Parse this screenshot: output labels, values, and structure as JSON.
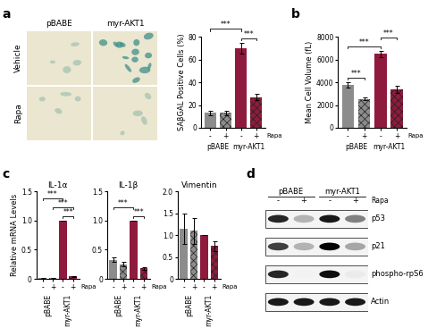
{
  "panel_labels": [
    "a",
    "b",
    "c",
    "d"
  ],
  "images": {
    "columns": [
      "pBABE",
      "myr-AKT1"
    ],
    "rows": [
      "Vehicle",
      "Rapa"
    ]
  },
  "chart_data": [
    {
      "type": "bar",
      "ylabel": "SAβGAL Positive Cells (%)",
      "categories": [
        "-",
        "+",
        "-",
        "+"
      ],
      "groups": [
        {
          "label": "pBABE",
          "span": [
            0,
            1
          ]
        },
        {
          "label": "myr-AKT1",
          "span": [
            2,
            3
          ]
        }
      ],
      "group_label": "Rapa",
      "values": [
        13,
        13,
        70,
        27
      ],
      "errors": [
        2,
        2,
        5,
        3
      ],
      "colors": [
        "#8c8c8c",
        "#8c8c8c",
        "#8e1b3e",
        "#8e1b3e"
      ],
      "ylim": [
        0,
        80
      ],
      "yticks": [
        0,
        20,
        40,
        60,
        80
      ],
      "significance": [
        {
          "pair": [
            2,
            3
          ],
          "label": "***"
        },
        {
          "pair": [
            0,
            2
          ],
          "label": "***"
        }
      ]
    },
    {
      "type": "bar",
      "ylabel": "Mean Cell Volume (fL)",
      "categories": [
        "-",
        "+",
        "-",
        "+"
      ],
      "groups": [
        {
          "label": "pBABE",
          "span": [
            0,
            1
          ]
        },
        {
          "label": "myr-AKT1",
          "span": [
            2,
            3
          ]
        }
      ],
      "group_label": "Rapa",
      "values": [
        3750,
        2550,
        6500,
        3400
      ],
      "errors": [
        250,
        150,
        250,
        300
      ],
      "colors": [
        "#8c8c8c",
        "#8c8c8c",
        "#8e1b3e",
        "#8e1b3e"
      ],
      "ylim": [
        0,
        8000
      ],
      "yticks": [
        0,
        2000,
        4000,
        6000,
        8000
      ],
      "significance": [
        {
          "pair": [
            0,
            1
          ],
          "label": "***"
        },
        {
          "pair": [
            0,
            2
          ],
          "label": "***"
        },
        {
          "pair": [
            2,
            3
          ],
          "label": "***"
        }
      ]
    },
    {
      "type": "bar",
      "title": "IL-1α",
      "ylabel": "Relative mRNA Levels",
      "categories": [
        "-",
        "+",
        "-",
        "+"
      ],
      "groups": [
        {
          "label": "pBABE",
          "span": [
            0,
            1
          ]
        },
        {
          "label": "myr-AKT1",
          "span": [
            2,
            3
          ]
        }
      ],
      "group_label": "Rapa",
      "values": [
        0.01,
        0.01,
        1.0,
        0.04
      ],
      "errors": [
        0.005,
        0.005,
        0,
        0.01
      ],
      "colors": [
        "#8c8c8c",
        "#8c8c8c",
        "#8e1b3e",
        "#8e1b3e"
      ],
      "ylim": [
        0,
        1.5
      ],
      "yticks": [
        0,
        0.5,
        1.0,
        1.5
      ],
      "significance": [
        {
          "pair": [
            2,
            3
          ],
          "label": "***"
        },
        {
          "pair": [
            1,
            3
          ],
          "label": "***"
        },
        {
          "pair": [
            0,
            2
          ],
          "label": "***"
        }
      ]
    },
    {
      "type": "bar",
      "title": "IL-1β",
      "categories": [
        "-",
        "+",
        "-",
        "+"
      ],
      "groups": [
        {
          "label": "pBABE",
          "span": [
            0,
            1
          ]
        },
        {
          "label": "myr-AKT1",
          "span": [
            2,
            3
          ]
        }
      ],
      "group_label": "Rapa",
      "values": [
        0.33,
        0.25,
        1.0,
        0.18
      ],
      "errors": [
        0.04,
        0.04,
        0,
        0.02
      ],
      "colors": [
        "#8c8c8c",
        "#8c8c8c",
        "#8e1b3e",
        "#8e1b3e"
      ],
      "ylim": [
        0,
        1.5
      ],
      "yticks": [
        0,
        0.5,
        1.0,
        1.5
      ],
      "significance": [
        {
          "pair": [
            2,
            3
          ],
          "label": "***"
        },
        {
          "pair": [
            0,
            2
          ],
          "label": "***"
        }
      ]
    },
    {
      "type": "bar",
      "title": "Vimentin",
      "categories": [
        "-",
        "+",
        "-",
        "+"
      ],
      "groups": [
        {
          "label": "pBABE",
          "span": [
            0,
            1
          ]
        },
        {
          "label": "myr-AKT1",
          "span": [
            2,
            3
          ]
        }
      ],
      "group_label": "Rapa",
      "values": [
        1.15,
        1.1,
        1.0,
        0.75
      ],
      "errors": [
        0.35,
        0.3,
        0,
        0.12
      ],
      "colors": [
        "#8c8c8c",
        "#8c8c8c",
        "#8e1b3e",
        "#8e1b3e"
      ],
      "ylim": [
        0,
        2.0
      ],
      "yticks": [
        0,
        0.5,
        1.0,
        1.5,
        2.0
      ],
      "significance": []
    }
  ],
  "blot": {
    "categories": [
      "-",
      "+",
      "-",
      "+"
    ],
    "groups": [
      {
        "label": "pBABE",
        "span": [
          0,
          1
        ]
      },
      {
        "label": "myr-AKT1",
        "span": [
          2,
          3
        ]
      }
    ],
    "group_label": "Rapa",
    "rows": [
      {
        "label": "p53",
        "bands": [
          0.85,
          0.3,
          0.9,
          0.5
        ]
      },
      {
        "label": "p21",
        "bands": [
          0.75,
          0.3,
          1.0,
          0.35
        ]
      },
      {
        "label": "phospho-rpS6",
        "bands": [
          0.85,
          0.05,
          0.95,
          0.08
        ]
      },
      {
        "label": "Actin",
        "bands": [
          0.9,
          0.9,
          0.9,
          0.9
        ]
      }
    ]
  }
}
